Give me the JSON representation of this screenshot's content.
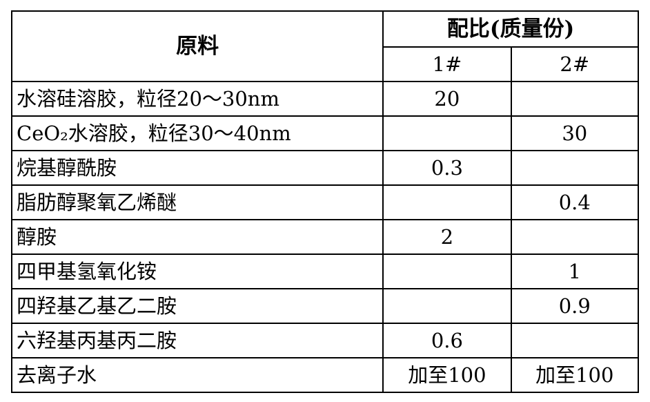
{
  "header": {
    "material": "原料",
    "ratio": "配比(质量份)",
    "col1": "1#",
    "col2": "2#"
  },
  "rows": [
    {
      "name": "水溶硅溶胶，粒径20～30nm",
      "v1": "20",
      "v2": ""
    },
    {
      "name": "CeO₂水溶胶，粒径30～40nm",
      "v1": "",
      "v2": "30"
    },
    {
      "name": "烷基醇酰胺",
      "v1": "0.3",
      "v2": ""
    },
    {
      "name": "脂肪醇聚氧乙烯醚",
      "v1": "",
      "v2": "0.4"
    },
    {
      "name": "醇胺",
      "v1": "2",
      "v2": ""
    },
    {
      "name": "四甲基氢氧化铵",
      "v1": "",
      "v2": "1"
    },
    {
      "name": "四羟基乙基乙二胺",
      "v1": "",
      "v2": "0.9"
    },
    {
      "name": "六羟基丙基丙二胺",
      "v1": "0.6",
      "v2": ""
    },
    {
      "name": "去离子水",
      "v1": "加至100",
      "v2": "加至100"
    }
  ]
}
